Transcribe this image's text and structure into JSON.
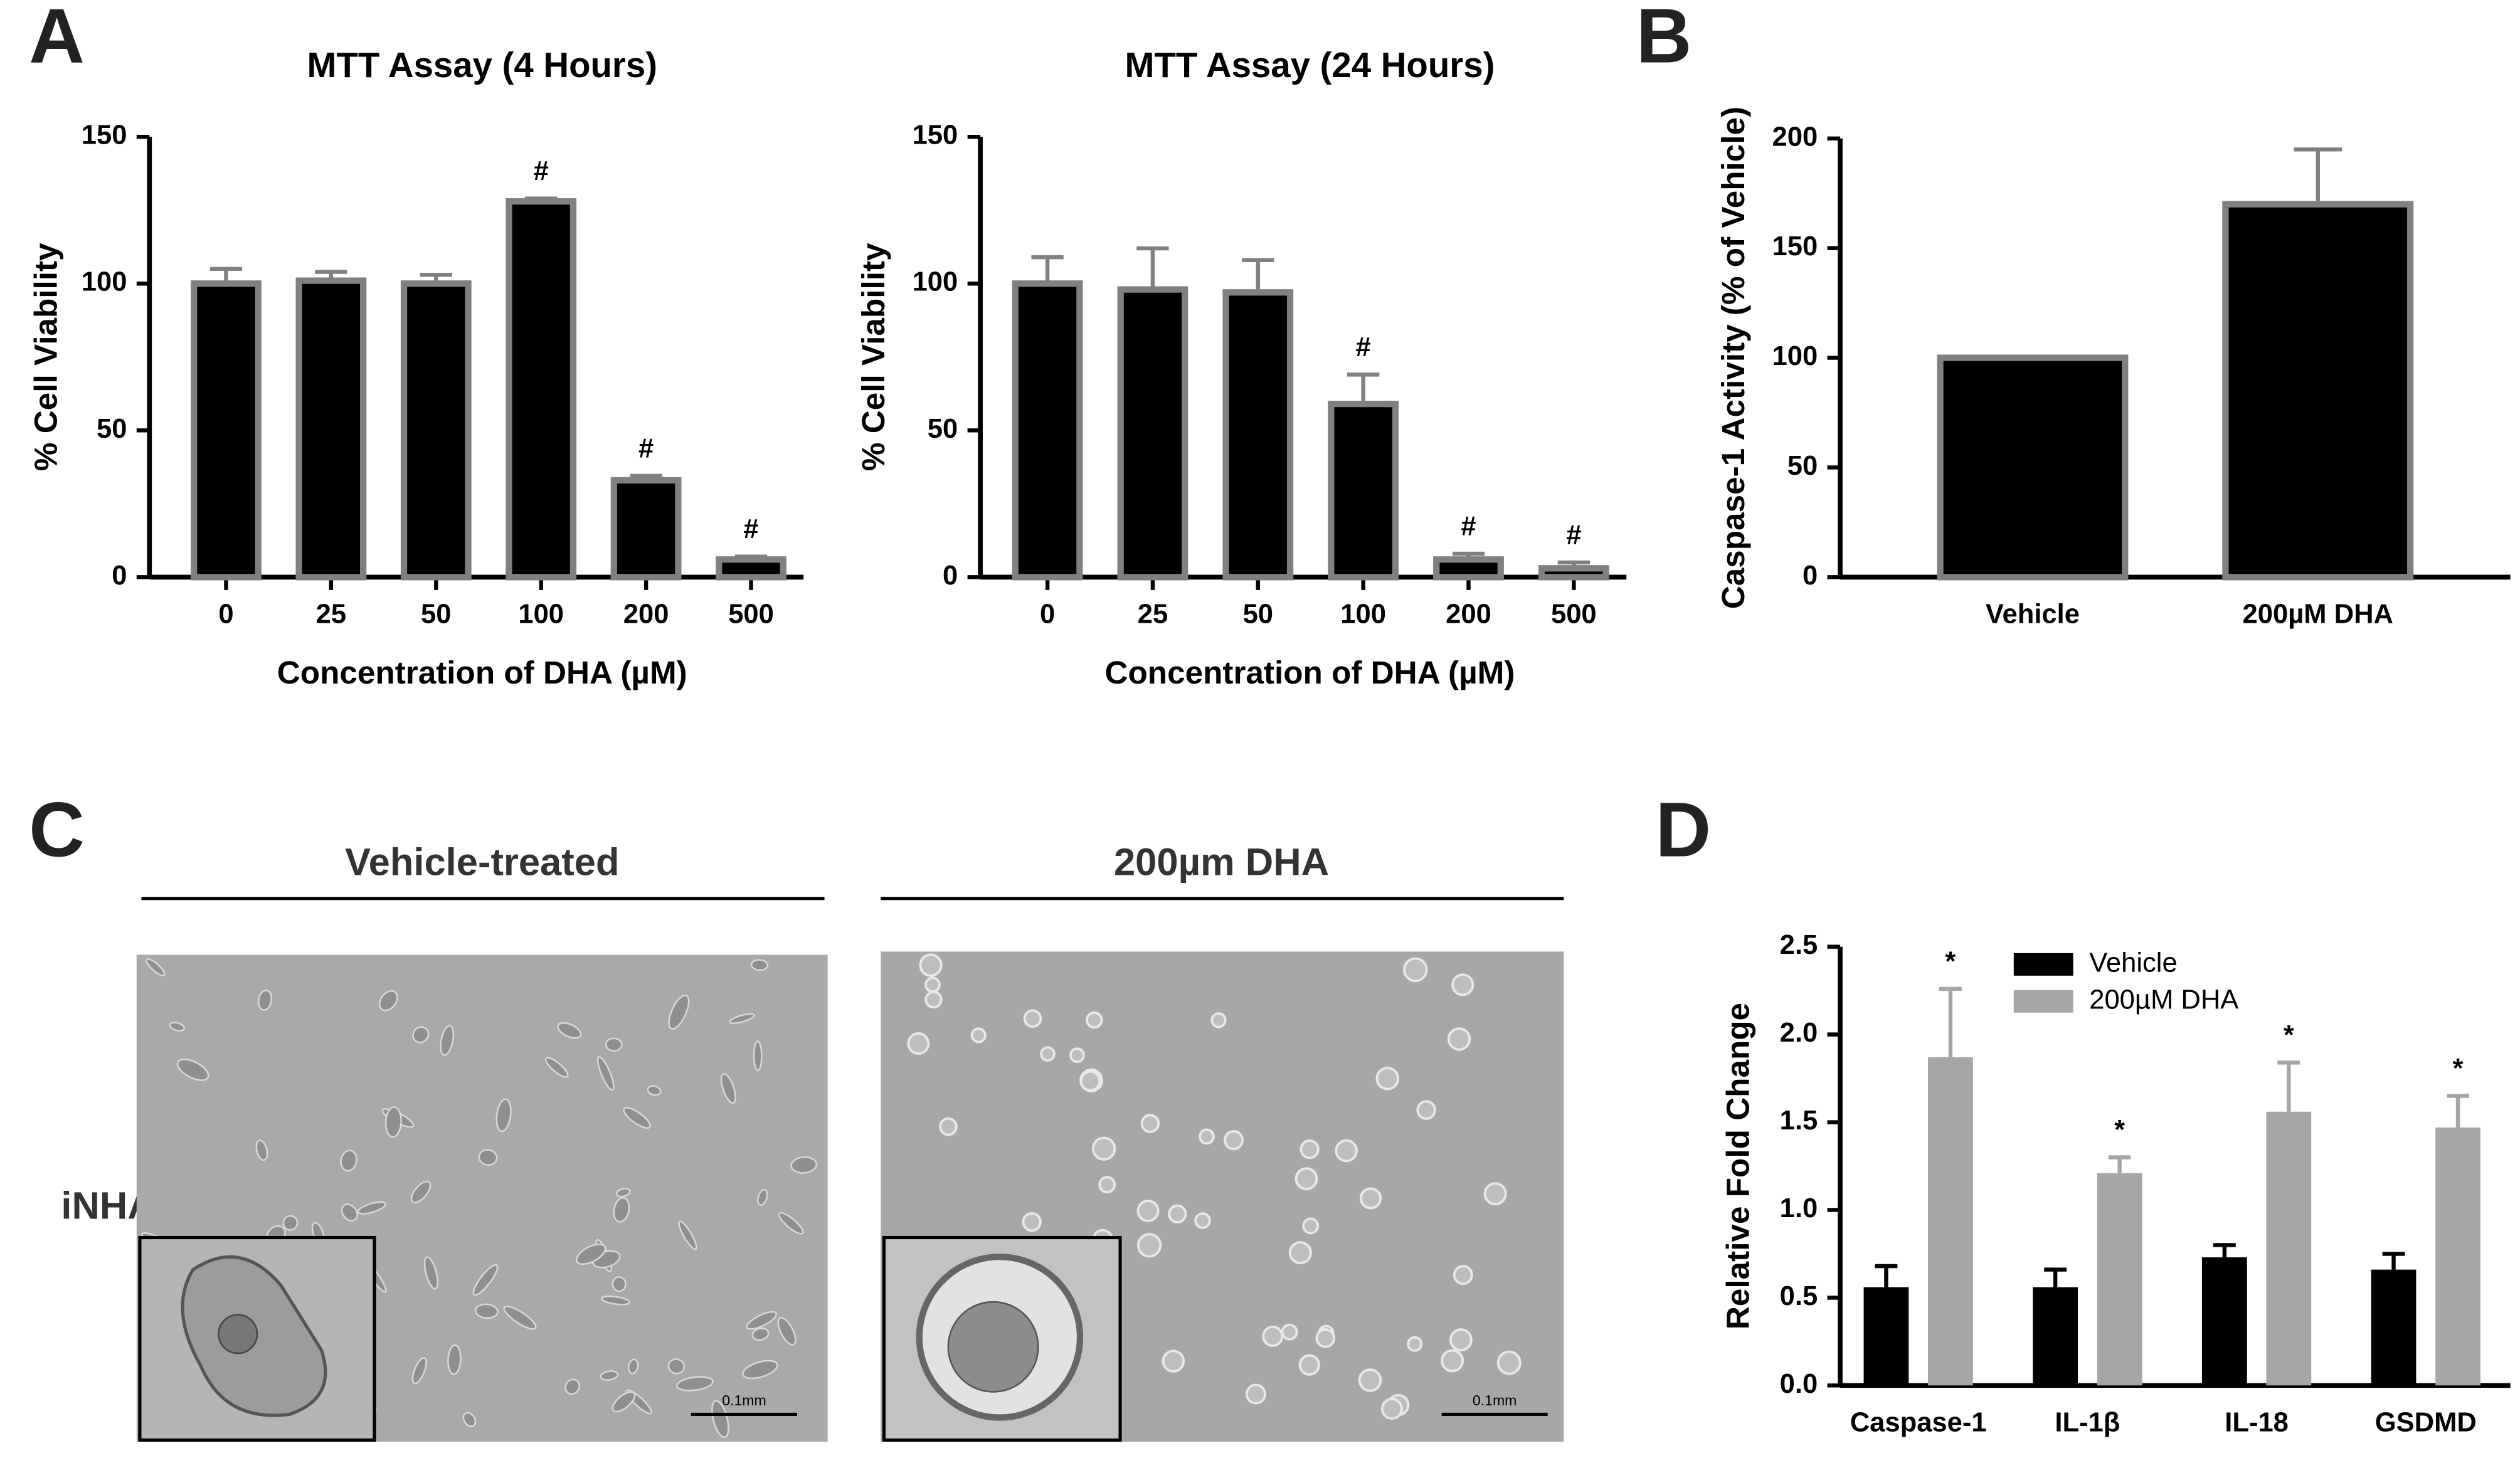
{
  "panel_labels": [
    "A",
    "B",
    "C",
    "D"
  ],
  "chart_data": [
    {
      "type": "bar",
      "title": "MTT Assay (4 Hours)",
      "xlabel": "Concentration of DHA (µM)",
      "ylabel": "% Cell Viability",
      "categories": [
        "0",
        "25",
        "50",
        "100",
        "200",
        "500"
      ],
      "values": [
        100,
        101,
        100,
        128,
        33,
        6
      ],
      "errors": [
        5,
        3,
        3,
        1,
        1.5,
        1
      ],
      "annotations": [
        null,
        null,
        null,
        "#",
        "#",
        "#"
      ],
      "color": "#000000",
      "edgecolor": "#808080",
      "ylim": [
        0,
        150
      ],
      "yticks": [
        0,
        50,
        100,
        150
      ]
    },
    {
      "type": "bar",
      "title": "MTT Assay (24 Hours)",
      "xlabel": "Concentration of DHA (µM)",
      "ylabel": "% Cell Viability",
      "categories": [
        "0",
        "25",
        "50",
        "100",
        "200",
        "500"
      ],
      "values": [
        100,
        98,
        97,
        59,
        6,
        3
      ],
      "errors": [
        9,
        14,
        11,
        10,
        2,
        2
      ],
      "annotations": [
        null,
        null,
        null,
        "#",
        "#",
        "#"
      ],
      "color": "#000000",
      "edgecolor": "#808080",
      "ylim": [
        0,
        150
      ],
      "yticks": [
        0,
        50,
        100,
        150
      ]
    },
    {
      "type": "bar",
      "ylabel": "Caspase-1 Activity (% of Vehicle)",
      "categories": [
        "Vehicle",
        "200µM DHA"
      ],
      "values": [
        100,
        170
      ],
      "errors": [
        null,
        25
      ],
      "color": "#000000",
      "edgecolor": "#808080",
      "ylim": [
        0,
        200
      ],
      "yticks": [
        0,
        50,
        100,
        150,
        200
      ]
    },
    {
      "type": "grouped_bar",
      "ylabel": "Relative Fold Change",
      "categories": [
        "Caspase-1",
        "IL-1β",
        "IL-18",
        "GSDMD"
      ],
      "series": [
        {
          "name": "Vehicle",
          "color": "#000000",
          "values": [
            0.56,
            0.56,
            0.73,
            0.66
          ],
          "errors": [
            0.12,
            0.1,
            0.07,
            0.09
          ]
        },
        {
          "name": "200µM DHA",
          "color": "#a6a6a6",
          "values": [
            1.87,
            1.21,
            1.56,
            1.47
          ],
          "errors": [
            0.39,
            0.09,
            0.28,
            0.18
          ],
          "annotations": [
            "*",
            "*",
            "*",
            "*"
          ]
        }
      ],
      "legend": "upper left",
      "ylim": [
        0,
        2.5
      ],
      "yticks": [
        {
          "value": 0,
          "label": "0.0"
        },
        0.5,
        {
          "value": 1,
          "label": "1.0"
        },
        1.5,
        {
          "value": 2,
          "label": "2.0"
        },
        2.5
      ]
    }
  ],
  "micrographs": {
    "row_label": "iNHA",
    "columns": [
      {
        "title": "Vehicle-treated",
        "scale_bar": "0.1mm"
      },
      {
        "title": "200µm DHA",
        "scale_bar": "0.1mm"
      }
    ]
  }
}
